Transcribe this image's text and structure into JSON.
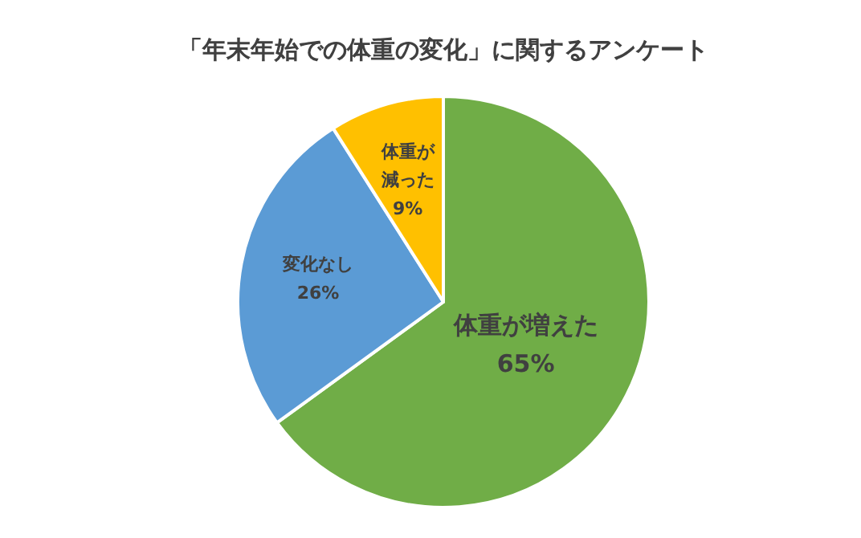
{
  "chart_data": {
    "type": "pie",
    "title": "「年末年始での体重の変化」に関するアンケート",
    "categories": [
      "体重が増えた",
      "変化なし",
      "体重が減った"
    ],
    "values": [
      65,
      26,
      9
    ],
    "colors": [
      "#70ad47",
      "#5b9bd5",
      "#ffc000"
    ],
    "value_labels": [
      "65%",
      "26%",
      "9%"
    ],
    "legend": false
  }
}
